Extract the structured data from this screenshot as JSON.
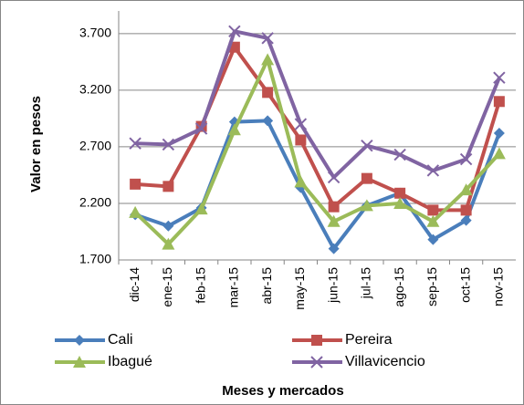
{
  "chart_data": {
    "type": "line",
    "y_label": "Valor en pesos",
    "x_label": "Meses  y mercados",
    "categories": [
      "dic-14",
      "ene-15",
      "feb-15",
      "mar-15",
      "abr-15",
      "may-15",
      "jun-15",
      "jul-15",
      "ago-15",
      "sep-15",
      "oct-15",
      "nov-15"
    ],
    "series": [
      {
        "name": "Cali",
        "color": "#4a7ebb",
        "marker": "diamond",
        "values": [
          2100,
          2000,
          2160,
          2920,
          2930,
          2340,
          1800,
          2180,
          2290,
          1880,
          2050,
          2820
        ]
      },
      {
        "name": "Pereira",
        "color": "#c0504d",
        "marker": "square",
        "values": [
          2370,
          2350,
          2880,
          3580,
          3180,
          2760,
          2170,
          2420,
          2290,
          2140,
          2140,
          3100
        ]
      },
      {
        "name": "Ibagué",
        "color": "#9bbb59",
        "marker": "triangle",
        "values": [
          2120,
          1840,
          2150,
          2850,
          3470,
          2390,
          2040,
          2180,
          2200,
          2040,
          2320,
          2640
        ]
      },
      {
        "name": "Villavicencio",
        "color": "#8064a2",
        "marker": "x",
        "values": [
          2730,
          2720,
          2860,
          3720,
          3660,
          2900,
          2430,
          2710,
          2630,
          2490,
          2590,
          3310
        ]
      }
    ],
    "ylim": [
      1700,
      3900
    ],
    "yticks": [
      {
        "value": 1700,
        "label": "1.700"
      },
      {
        "value": 2200,
        "label": "2.200"
      },
      {
        "value": 2700,
        "label": "2.700"
      },
      {
        "value": 3200,
        "label": "3.200"
      },
      {
        "value": 3700,
        "label": "3.700"
      }
    ],
    "grid": true,
    "legend": "bottom"
  }
}
